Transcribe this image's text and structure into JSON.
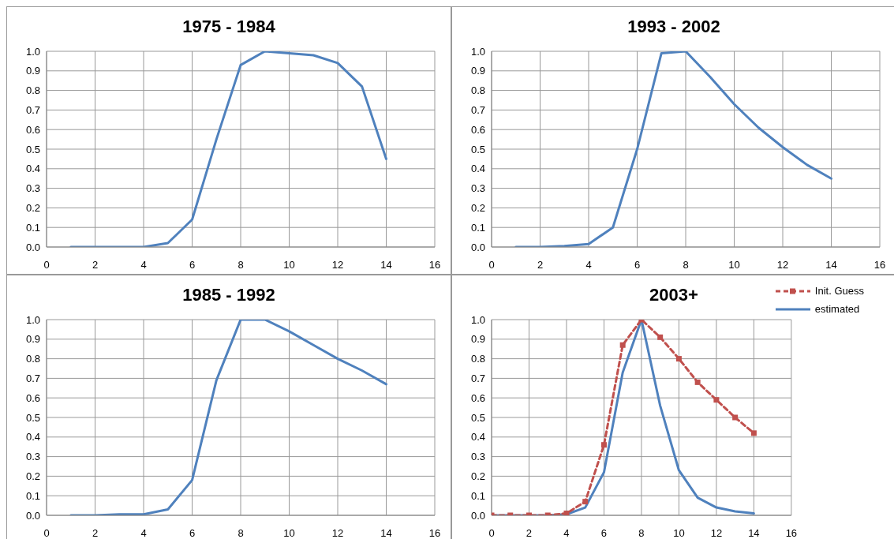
{
  "chart_data": [
    {
      "type": "line",
      "title": "1975 - 1984",
      "x": [
        1,
        2,
        3,
        4,
        5,
        6,
        7,
        8,
        9,
        10,
        11,
        12,
        13,
        14
      ],
      "series": [
        {
          "color": "#4f81bd",
          "values": [
            0,
            0,
            0,
            0,
            0.02,
            0.14,
            0.55,
            0.93,
            1.0,
            0.99,
            0.98,
            0.94,
            0.82,
            0.45
          ]
        }
      ],
      "xlim": [
        0,
        16
      ],
      "xticks": [
        0,
        2,
        4,
        6,
        8,
        10,
        12,
        14,
        16
      ],
      "ylim": [
        0,
        1
      ],
      "yticks": [
        {
          "value": 0,
          "label": "0.0"
        },
        {
          "value": 0.1,
          "label": "0.1"
        },
        {
          "value": 0.2,
          "label": "0.2"
        },
        {
          "value": 0.3,
          "label": "0.3"
        },
        {
          "value": 0.4,
          "label": "0.4"
        },
        {
          "value": 0.5,
          "label": "0.5"
        },
        {
          "value": 0.6,
          "label": "0.6"
        },
        {
          "value": 0.7,
          "label": "0.7"
        },
        {
          "value": 0.8,
          "label": "0.8"
        },
        {
          "value": 0.9,
          "label": "0.9"
        },
        {
          "value": 1,
          "label": "1.0"
        }
      ],
      "grid": true,
      "legend": false,
      "marker": "none",
      "line_style": "solid"
    },
    {
      "type": "line",
      "title": "1993 - 2002",
      "x": [
        1,
        2,
        3,
        4,
        5,
        6,
        7,
        8,
        9,
        10,
        11,
        12,
        13,
        14
      ],
      "series": [
        {
          "color": "#4f81bd",
          "values": [
            0,
            0,
            0.005,
            0.015,
            0.1,
            0.5,
            0.99,
            1.0,
            0.87,
            0.73,
            0.61,
            0.51,
            0.42,
            0.35
          ]
        }
      ],
      "xlim": [
        0,
        16
      ],
      "xticks": [
        0,
        2,
        4,
        6,
        8,
        10,
        12,
        14,
        16
      ],
      "ylim": [
        0,
        1
      ],
      "yticks": [
        {
          "value": 0,
          "label": "0.0"
        },
        {
          "value": 0.1,
          "label": "0.1"
        },
        {
          "value": 0.2,
          "label": "0.2"
        },
        {
          "value": 0.3,
          "label": "0.3"
        },
        {
          "value": 0.4,
          "label": "0.4"
        },
        {
          "value": 0.5,
          "label": "0.5"
        },
        {
          "value": 0.6,
          "label": "0.6"
        },
        {
          "value": 0.7,
          "label": "0.7"
        },
        {
          "value": 0.8,
          "label": "0.8"
        },
        {
          "value": 0.9,
          "label": "0.9"
        },
        {
          "value": 1,
          "label": "1.0"
        }
      ],
      "grid": true,
      "legend": false,
      "marker": "none",
      "line_style": "solid"
    },
    {
      "type": "line",
      "title": "1985 - 1992",
      "x": [
        1,
        2,
        3,
        4,
        5,
        6,
        7,
        8,
        9,
        10,
        11,
        12,
        13,
        14
      ],
      "series": [
        {
          "color": "#4f81bd",
          "values": [
            0,
            0,
            0.005,
            0.005,
            0.03,
            0.18,
            0.69,
            1.0,
            1.0,
            0.94,
            0.87,
            0.8,
            0.74,
            0.67
          ]
        }
      ],
      "xlim": [
        0,
        16
      ],
      "xticks": [
        0,
        2,
        4,
        6,
        8,
        10,
        12,
        14,
        16
      ],
      "ylim": [
        0,
        1
      ],
      "yticks": [
        {
          "value": 0,
          "label": "0.0"
        },
        {
          "value": 0.1,
          "label": "0.1"
        },
        {
          "value": 0.2,
          "label": "0.2"
        },
        {
          "value": 0.3,
          "label": "0.3"
        },
        {
          "value": 0.4,
          "label": "0.4"
        },
        {
          "value": 0.5,
          "label": "0.5"
        },
        {
          "value": 0.6,
          "label": "0.6"
        },
        {
          "value": 0.7,
          "label": "0.7"
        },
        {
          "value": 0.8,
          "label": "0.8"
        },
        {
          "value": 0.9,
          "label": "0.9"
        },
        {
          "value": 1,
          "label": "1.0"
        }
      ],
      "grid": true,
      "legend": false,
      "marker": "none",
      "line_style": "solid"
    },
    {
      "type": "line",
      "title": "2003+",
      "x": [
        0,
        1,
        2,
        3,
        4,
        5,
        6,
        7,
        8,
        9,
        10,
        11,
        12,
        13,
        14
      ],
      "series": [
        {
          "name": "estimated",
          "color": "#4f81bd",
          "marker": "none",
          "line_style": "solid",
          "values": [
            0,
            0,
            0,
            0,
            0.005,
            0.04,
            0.22,
            0.73,
            1.0,
            0.56,
            0.23,
            0.09,
            0.04,
            0.02,
            0.01
          ]
        },
        {
          "name": "Init. Guess",
          "color": "#c0504d",
          "marker": "square",
          "line_style": "dashed",
          "values": [
            0,
            0,
            0,
            0,
            0.01,
            0.07,
            0.36,
            0.87,
            1.0,
            0.91,
            0.8,
            0.68,
            0.59,
            0.5,
            0.42
          ]
        }
      ],
      "xlim": [
        0,
        16
      ],
      "xticks": [
        0,
        2,
        4,
        6,
        8,
        10,
        12,
        14,
        16
      ],
      "ylim": [
        0,
        1
      ],
      "yticks": [
        {
          "value": 0,
          "label": "0.0"
        },
        {
          "value": 0.1,
          "label": "0.1"
        },
        {
          "value": 0.2,
          "label": "0.2"
        },
        {
          "value": 0.3,
          "label": "0.3"
        },
        {
          "value": 0.4,
          "label": "0.4"
        },
        {
          "value": 0.5,
          "label": "0.5"
        },
        {
          "value": 0.6,
          "label": "0.6"
        },
        {
          "value": 0.7,
          "label": "0.7"
        },
        {
          "value": 0.8,
          "label": "0.8"
        },
        {
          "value": 0.9,
          "label": "0.9"
        },
        {
          "value": 1,
          "label": "1.0"
        }
      ],
      "grid": true,
      "legend": "top right"
    }
  ]
}
